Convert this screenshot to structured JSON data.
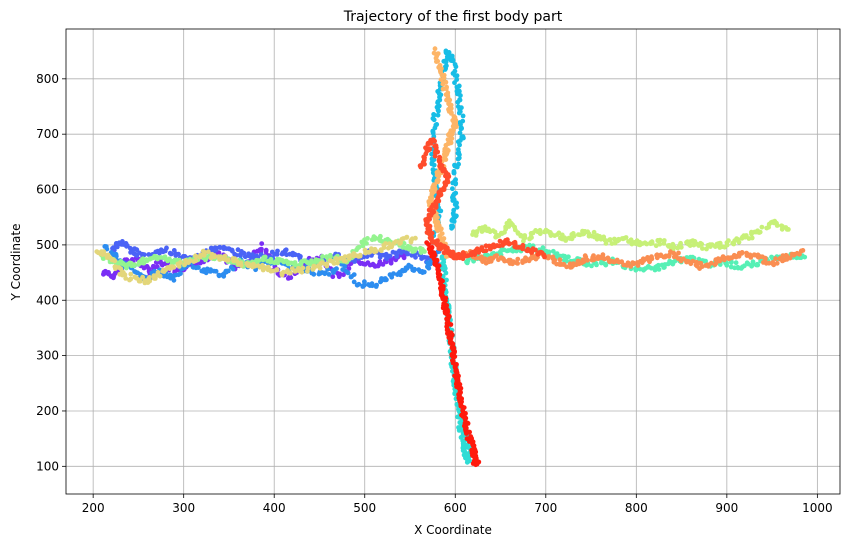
{
  "chart_data": {
    "type": "scatter",
    "title": "Trajectory of the first body part",
    "xlabel": "X Coordinate",
    "ylabel": "Y Coordinate",
    "xlim": [
      170,
      1025
    ],
    "ylim": [
      50,
      890
    ],
    "xticks": [
      200,
      300,
      400,
      500,
      600,
      700,
      800,
      900,
      1000
    ],
    "yticks": [
      100,
      200,
      300,
      400,
      500,
      600,
      700,
      800
    ],
    "grid": true,
    "colormap": "rainbow",
    "segments": [
      {
        "name": "",
        "color": "#7a2ef5",
        "points": [
          [
            212,
            450
          ],
          [
            224,
            445
          ],
          [
            236,
            468
          ],
          [
            248,
            476
          ],
          [
            262,
            448
          ],
          [
            276,
            470
          ],
          [
            290,
            455
          ],
          [
            306,
            462
          ],
          [
            322,
            470
          ],
          [
            340,
            484
          ],
          [
            356,
            460
          ],
          [
            372,
            470
          ],
          [
            388,
            500
          ],
          [
            402,
            452
          ],
          [
            418,
            440
          ],
          [
            434,
            468
          ],
          [
            452,
            478
          ],
          [
            470,
            440
          ],
          [
            490,
            475
          ],
          [
            508,
            462
          ],
          [
            526,
            470
          ],
          [
            544,
            482
          ]
        ]
      },
      {
        "name": "",
        "color": "#4a63f6",
        "points": [
          [
            220,
            492
          ],
          [
            232,
            505
          ],
          [
            246,
            488
          ],
          [
            262,
            480
          ],
          [
            280,
            492
          ],
          [
            300,
            475
          ],
          [
            318,
            482
          ],
          [
            336,
            495
          ],
          [
            354,
            488
          ],
          [
            372,
            480
          ],
          [
            392,
            478
          ],
          [
            410,
            490
          ],
          [
            428,
            475
          ],
          [
            446,
            465
          ],
          [
            466,
            480
          ],
          [
            486,
            472
          ],
          [
            506,
            485
          ],
          [
            524,
            478
          ],
          [
            542,
            490
          ],
          [
            560,
            480
          ],
          [
            575,
            470
          ],
          [
            588,
            455
          ]
        ]
      },
      {
        "name": "",
        "color": "#2c8df0",
        "points": [
          [
            215,
            500
          ],
          [
            228,
            470
          ],
          [
            242,
            460
          ],
          [
            256,
            438
          ],
          [
            272,
            452
          ],
          [
            288,
            440
          ],
          [
            304,
            468
          ],
          [
            324,
            455
          ],
          [
            342,
            445
          ],
          [
            360,
            470
          ],
          [
            378,
            460
          ],
          [
            396,
            472
          ],
          [
            416,
            462
          ],
          [
            436,
            455
          ],
          [
            456,
            448
          ],
          [
            474,
            462
          ],
          [
            494,
            430
          ],
          [
            512,
            428
          ],
          [
            530,
            445
          ],
          [
            548,
            460
          ],
          [
            566,
            452
          ],
          [
            582,
            488
          ]
        ]
      },
      {
        "name": "",
        "color": "#17bde6",
        "points": [
          [
            578,
            520
          ],
          [
            582,
            550
          ],
          [
            580,
            585
          ],
          [
            578,
            620
          ],
          [
            576,
            650
          ],
          [
            575,
            690
          ],
          [
            578,
            730
          ],
          [
            581,
            760
          ],
          [
            584,
            790
          ],
          [
            588,
            820
          ],
          [
            592,
            850
          ],
          [
            598,
            830
          ],
          [
            602,
            790
          ],
          [
            605,
            750
          ],
          [
            608,
            710
          ],
          [
            604,
            670
          ],
          [
            600,
            630
          ],
          [
            598,
            590
          ],
          [
            600,
            560
          ],
          [
            596,
            530
          ]
        ]
      },
      {
        "name": "",
        "color": "#2fdcd5",
        "points": [
          [
            586,
            480
          ],
          [
            588,
            445
          ],
          [
            590,
            410
          ],
          [
            592,
            380
          ],
          [
            594,
            350
          ],
          [
            596,
            320
          ],
          [
            598,
            290
          ],
          [
            600,
            260
          ],
          [
            602,
            230
          ],
          [
            604,
            200
          ],
          [
            606,
            170
          ],
          [
            608,
            140
          ],
          [
            612,
            120
          ],
          [
            616,
            110
          ],
          [
            612,
            150
          ],
          [
            608,
            185
          ],
          [
            604,
            215
          ],
          [
            600,
            245
          ],
          [
            598,
            275
          ],
          [
            596,
            305
          ]
        ]
      },
      {
        "name": "",
        "color": "#56f0b5",
        "points": [
          [
            610,
            470
          ],
          [
            628,
            475
          ],
          [
            646,
            485
          ],
          [
            664,
            490
          ],
          [
            682,
            495
          ],
          [
            700,
            488
          ],
          [
            718,
            478
          ],
          [
            736,
            470
          ],
          [
            754,
            465
          ],
          [
            772,
            470
          ],
          [
            790,
            462
          ],
          [
            808,
            455
          ],
          [
            826,
            460
          ],
          [
            844,
            470
          ],
          [
            862,
            475
          ],
          [
            880,
            465
          ],
          [
            898,
            470
          ],
          [
            916,
            460
          ],
          [
            934,
            468
          ],
          [
            952,
            475
          ],
          [
            970,
            480
          ],
          [
            986,
            478
          ]
        ]
      },
      {
        "name": "",
        "color": "#94f48f",
        "points": [
          [
            208,
            478
          ],
          [
            222,
            470
          ],
          [
            236,
            462
          ],
          [
            252,
            470
          ],
          [
            268,
            480
          ],
          [
            284,
            472
          ],
          [
            300,
            468
          ],
          [
            318,
            475
          ],
          [
            336,
            478
          ],
          [
            354,
            470
          ],
          [
            372,
            462
          ],
          [
            390,
            475
          ],
          [
            408,
            470
          ],
          [
            426,
            465
          ],
          [
            444,
            470
          ],
          [
            462,
            480
          ],
          [
            480,
            470
          ],
          [
            498,
            505
          ],
          [
            516,
            512
          ],
          [
            534,
            505
          ],
          [
            550,
            495
          ],
          [
            566,
            488
          ]
        ]
      },
      {
        "name": "",
        "color": "#c7f078",
        "points": [
          [
            620,
            520
          ],
          [
            632,
            530
          ],
          [
            648,
            515
          ],
          [
            662,
            540
          ],
          [
            676,
            510
          ],
          [
            692,
            525
          ],
          [
            708,
            520
          ],
          [
            724,
            510
          ],
          [
            740,
            525
          ],
          [
            756,
            515
          ],
          [
            772,
            505
          ],
          [
            790,
            510
          ],
          [
            808,
            500
          ],
          [
            826,
            505
          ],
          [
            844,
            495
          ],
          [
            862,
            505
          ],
          [
            880,
            495
          ],
          [
            898,
            500
          ],
          [
            916,
            510
          ],
          [
            932,
            520
          ],
          [
            950,
            540
          ],
          [
            968,
            528
          ]
        ]
      },
      {
        "name": "",
        "color": "#e3d67a",
        "points": [
          [
            206,
            490
          ],
          [
            218,
            480
          ],
          [
            230,
            450
          ],
          [
            244,
            440
          ],
          [
            258,
            435
          ],
          [
            272,
            445
          ],
          [
            288,
            462
          ],
          [
            304,
            470
          ],
          [
            322,
            485
          ],
          [
            340,
            478
          ],
          [
            358,
            470
          ],
          [
            376,
            462
          ],
          [
            394,
            455
          ],
          [
            412,
            450
          ],
          [
            430,
            455
          ],
          [
            448,
            460
          ],
          [
            466,
            470
          ],
          [
            484,
            478
          ],
          [
            502,
            488
          ],
          [
            520,
            495
          ],
          [
            538,
            505
          ],
          [
            556,
            512
          ]
        ]
      },
      {
        "name": "",
        "color": "#fdb567",
        "points": [
          [
            578,
            850
          ],
          [
            584,
            820
          ],
          [
            588,
            790
          ],
          [
            592,
            760
          ],
          [
            596,
            740
          ],
          [
            600,
            720
          ],
          [
            596,
            700
          ],
          [
            592,
            680
          ],
          [
            588,
            660
          ],
          [
            584,
            640
          ],
          [
            580,
            620
          ],
          [
            576,
            600
          ],
          [
            572,
            580
          ],
          [
            576,
            560
          ],
          [
            580,
            540
          ],
          [
            584,
            520
          ],
          [
            588,
            500
          ],
          [
            592,
            480
          ]
        ]
      },
      {
        "name": "",
        "color": "#fa8e52",
        "points": [
          [
            600,
            480
          ],
          [
            616,
            485
          ],
          [
            632,
            470
          ],
          [
            648,
            478
          ],
          [
            664,
            468
          ],
          [
            680,
            475
          ],
          [
            696,
            482
          ],
          [
            712,
            470
          ],
          [
            728,
            462
          ],
          [
            744,
            475
          ],
          [
            760,
            480
          ],
          [
            776,
            470
          ],
          [
            792,
            462
          ],
          [
            808,
            470
          ],
          [
            824,
            478
          ],
          [
            840,
            485
          ],
          [
            856,
            470
          ],
          [
            872,
            462
          ],
          [
            888,
            470
          ],
          [
            904,
            478
          ],
          [
            920,
            485
          ],
          [
            936,
            475
          ],
          [
            952,
            468
          ],
          [
            968,
            480
          ],
          [
            984,
            490
          ]
        ]
      },
      {
        "name": "",
        "color": "#ff4c2c",
        "points": [
          [
            562,
            640
          ],
          [
            568,
            670
          ],
          [
            574,
            690
          ],
          [
            580,
            660
          ],
          [
            586,
            640
          ],
          [
            592,
            620
          ],
          [
            586,
            600
          ],
          [
            580,
            580
          ],
          [
            574,
            560
          ],
          [
            568,
            540
          ],
          [
            572,
            520
          ],
          [
            578,
            505
          ],
          [
            586,
            495
          ],
          [
            594,
            485
          ],
          [
            602,
            478
          ],
          [
            614,
            482
          ],
          [
            628,
            490
          ],
          [
            642,
            498
          ],
          [
            656,
            505
          ],
          [
            670,
            498
          ],
          [
            684,
            490
          ],
          [
            698,
            482
          ]
        ]
      },
      {
        "name": "",
        "color": "#ff1a0d",
        "points": [
          [
            570,
            500
          ],
          [
            576,
            480
          ],
          [
            580,
            460
          ],
          [
            584,
            440
          ],
          [
            586,
            420
          ],
          [
            588,
            400
          ],
          [
            590,
            380
          ],
          [
            592,
            360
          ],
          [
            594,
            340
          ],
          [
            596,
            320
          ],
          [
            598,
            300
          ],
          [
            600,
            280
          ],
          [
            602,
            260
          ],
          [
            604,
            240
          ],
          [
            606,
            220
          ],
          [
            608,
            200
          ],
          [
            612,
            180
          ],
          [
            614,
            160
          ],
          [
            618,
            140
          ],
          [
            620,
            125
          ],
          [
            622,
            110
          ],
          [
            624,
            105
          ]
        ]
      }
    ]
  }
}
